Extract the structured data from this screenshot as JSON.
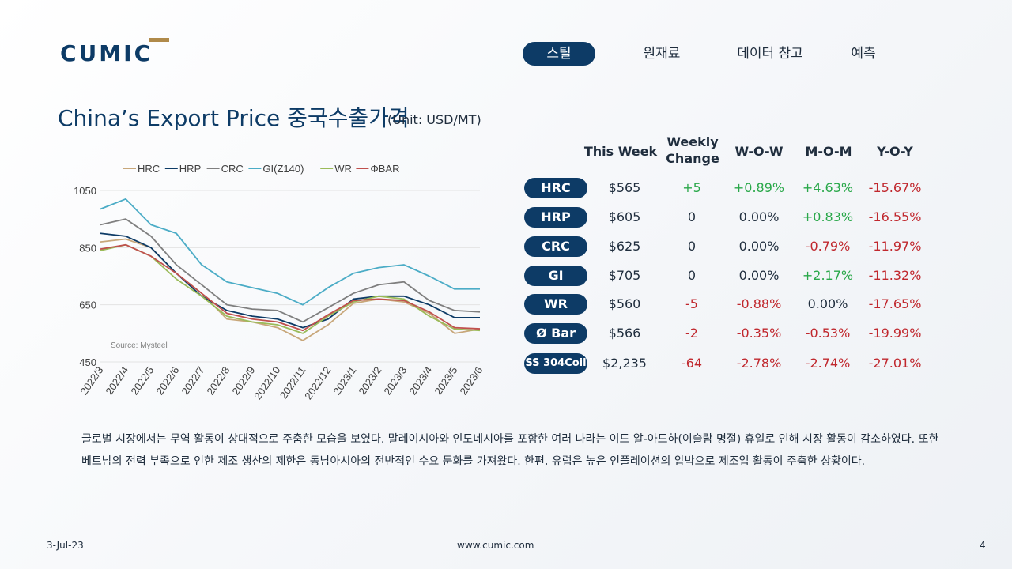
{
  "brand": {
    "logo_text": "CUMIC",
    "accent": "#0d3b66",
    "gold": "#b08a4a"
  },
  "nav": {
    "items": [
      {
        "label": "스틸",
        "active": true
      },
      {
        "label": "원재료",
        "active": false
      },
      {
        "label": "데이터 참고",
        "active": false
      },
      {
        "label": "예측",
        "active": false
      }
    ]
  },
  "page": {
    "title": "China’s Export Price 중국수출가격",
    "unit": "(Unit: USD/MT)"
  },
  "table": {
    "headers": {
      "this_week": "This Week",
      "weekly_change": [
        "Weekly",
        "Change"
      ],
      "wow": "W-O-W",
      "mom": "M-O-M",
      "yoy": "Y-O-Y"
    },
    "rows": [
      {
        "label": "HRC",
        "price": "$565",
        "change": "+5",
        "wow": "+0.89%",
        "mom": "+4.63%",
        "yoy": "-15.67%"
      },
      {
        "label": "HRP",
        "price": "$605",
        "change": "0",
        "wow": "0.00%",
        "mom": "+0.83%",
        "yoy": "-16.55%"
      },
      {
        "label": "CRC",
        "price": "$625",
        "change": "0",
        "wow": "0.00%",
        "mom": "-0.79%",
        "yoy": "-11.97%"
      },
      {
        "label": "GI",
        "price": "$705",
        "change": "0",
        "wow": "0.00%",
        "mom": "+2.17%",
        "yoy": "-11.32%"
      },
      {
        "label": "WR",
        "price": "$560",
        "change": "-5",
        "wow": "-0.88%",
        "mom": "0.00%",
        "yoy": "-17.65%"
      },
      {
        "label": "Ø Bar",
        "price": "$566",
        "change": "-2",
        "wow": "-0.35%",
        "mom": "-0.53%",
        "yoy": "-19.99%"
      },
      {
        "label": "SS 304Coil",
        "price": "$2,235",
        "change": "-64",
        "wow": "-2.78%",
        "mom": "-2.74%",
        "yoy": "-27.01%"
      }
    ]
  },
  "paragraph": "글로벌 시장에서는 무역 활동이 상대적으로 주춤한 모습을 보였다. 말레이시아와 인도네시아를 포함한 여러 나라는 이드 알-아드하(이슬람 명절) 휴일로 인해 시장 활동이 감소하였다. 또한 베트남의 전력 부족으로 인한 제조 생산의 제한은 동남아시아의 전반적인 수요 둔화를 가져왔다. 한편, 유럽은 높은 인플레이션의 압박으로 제조업 활동이 주춤한 상황이다.",
  "footer": {
    "date": "3-Jul-23",
    "url": "www.cumic.com",
    "page": "4"
  },
  "chart_data": {
    "type": "line",
    "title": "",
    "source": "Source: Mysteel",
    "ylim": [
      450,
      1050
    ],
    "yticks": [
      450,
      650,
      850,
      1050
    ],
    "x_labels": [
      "2022/3",
      "2022/4",
      "2022/5",
      "2022/6",
      "2022/7",
      "2022/8",
      "2022/9",
      "2022/10",
      "2022/11",
      "2022/12",
      "2023/1",
      "2023/2",
      "2023/3",
      "2023/4",
      "2023/5",
      "2023/6"
    ],
    "legend_position": "top",
    "grid": "horizontal",
    "series": [
      {
        "name": "HRC",
        "color": "#c8a77a",
        "values": [
          870,
          880,
          850,
          760,
          690,
          600,
          590,
          570,
          525,
          580,
          655,
          670,
          660,
          620,
          550,
          565
        ]
      },
      {
        "name": "HRP",
        "color": "#0d3b66",
        "values": [
          900,
          890,
          850,
          760,
          680,
          630,
          610,
          600,
          570,
          600,
          670,
          680,
          680,
          650,
          605,
          605
        ]
      },
      {
        "name": "CRC",
        "color": "#7f7f7f",
        "values": [
          930,
          950,
          890,
          790,
          720,
          650,
          635,
          630,
          590,
          640,
          690,
          720,
          730,
          665,
          630,
          625
        ]
      },
      {
        "name": "GI(Z140)",
        "color": "#4bacc6",
        "values": [
          985,
          1020,
          930,
          900,
          790,
          730,
          710,
          690,
          650,
          710,
          760,
          780,
          790,
          750,
          705,
          705
        ]
      },
      {
        "name": "WR",
        "color": "#9bbb59",
        "values": [
          840,
          860,
          820,
          740,
          680,
          610,
          590,
          580,
          550,
          610,
          660,
          680,
          670,
          610,
          565,
          560
        ]
      },
      {
        "name": "ΦBAR",
        "color": "#c0504d",
        "values": [
          845,
          860,
          820,
          760,
          690,
          620,
          600,
          590,
          560,
          615,
          665,
          670,
          665,
          625,
          570,
          566
        ]
      }
    ]
  }
}
